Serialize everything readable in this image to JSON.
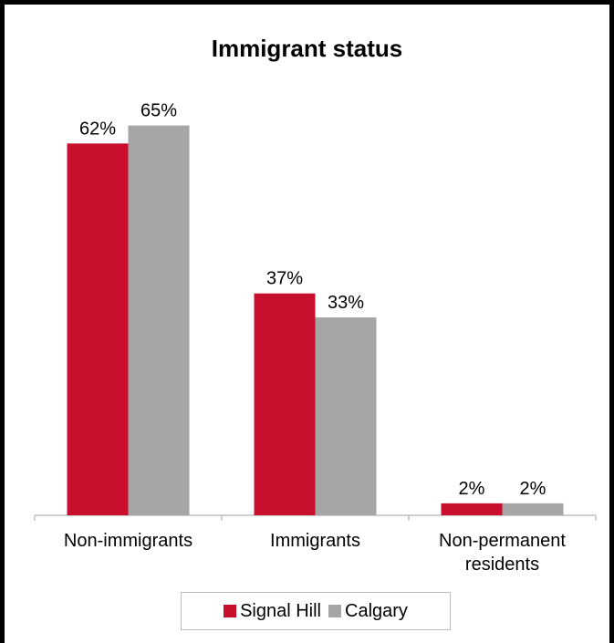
{
  "colors": {
    "series1": "#c8102e",
    "series2": "#a6a6a6",
    "axis": "#bfbfbf"
  },
  "chart_data": {
    "type": "bar",
    "title": "Immigrant status",
    "categories": [
      [
        "Non-immigrants"
      ],
      [
        "Immigrants"
      ],
      [
        "Non-permanent",
        "residents"
      ]
    ],
    "series": [
      {
        "name": "Signal Hill",
        "values": [
          62,
          37,
          2
        ],
        "labels": [
          "62%",
          "37%",
          "2%"
        ]
      },
      {
        "name": "Calgary",
        "values": [
          65,
          33,
          2
        ],
        "labels": [
          "65%",
          "33%",
          "2%"
        ]
      }
    ],
    "ylim": [
      0,
      73
    ],
    "grid": false,
    "legend_position": "bottom"
  }
}
